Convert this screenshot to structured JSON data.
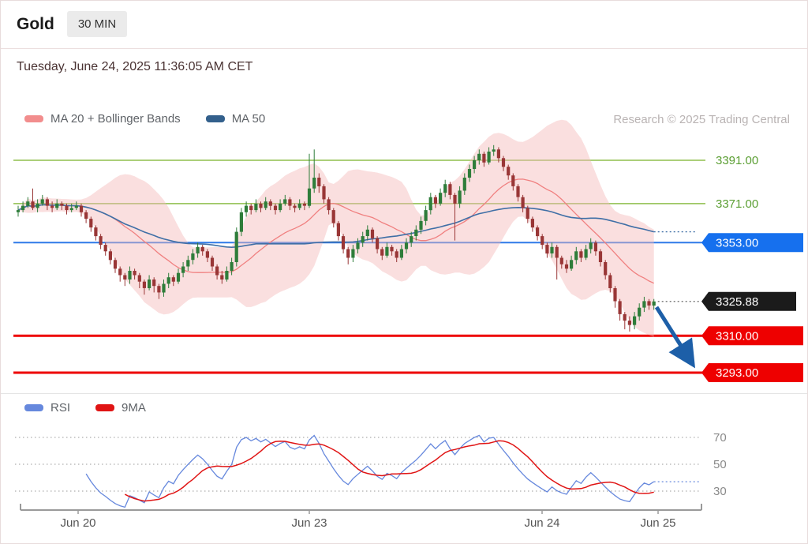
{
  "header": {
    "title": "Gold",
    "timeframe": "30 MIN"
  },
  "datetime": "Tuesday, June 24, 2025 11:36:05 AM CET",
  "watermark": "Research © 2025 Trading Central",
  "legend_main": [
    {
      "label": "MA 20 + Bollinger Bands",
      "color": "#f28d8d"
    },
    {
      "label": "MA 50",
      "color": "#33608c"
    }
  ],
  "legend_rsi": [
    {
      "label": "RSI",
      "color": "#6688dd"
    },
    {
      "label": "9MA",
      "color": "#e01414"
    }
  ],
  "chart_data": {
    "type": "candlestick",
    "title": "Gold 30 MIN",
    "interval": "30 min",
    "x_axis_labels": [
      "Jun 20",
      "Jun 23",
      "Jun 24",
      "Jun 25"
    ],
    "price_range": [
      3286,
      3400
    ],
    "y_levels": [
      {
        "label": "3391.00",
        "price": 3391,
        "type": "resistance",
        "style": "text",
        "color": "#5a9e32",
        "line_color": "#8fbf4d",
        "line_width": 1.5
      },
      {
        "label": "3371.00",
        "price": 3371,
        "type": "resistance",
        "style": "text",
        "color": "#5a9e32",
        "line_color": "#8fbf4d",
        "line_width": 1.5
      },
      {
        "label": "3353.00",
        "price": 3353,
        "type": "pivot",
        "style": "tag",
        "color": "#1670ee",
        "line_color": "#2f7ae8",
        "line_width": 2
      },
      {
        "label": "3310.00",
        "price": 3310,
        "type": "support",
        "style": "tag",
        "color": "#ee0000",
        "line_color": "#ee0000",
        "line_width": 3
      },
      {
        "label": "3293.00",
        "price": 3293,
        "type": "support",
        "style": "tag",
        "color": "#ee0000",
        "line_color": "#ee0000",
        "line_width": 3
      }
    ],
    "last_price": {
      "label": "3325.88",
      "price": 3325.88,
      "color": "#1b1b1b"
    },
    "indicators": {
      "bollinger": {
        "period": 20,
        "stddev": 2,
        "color": "#f08080",
        "fill": "#f3b8b8"
      },
      "ma50": {
        "period": 50,
        "color": "#3f6fa6"
      },
      "rsi": {
        "period": 14,
        "signal_ma": 9,
        "color": "#6688dd",
        "ma_color": "#e01414",
        "gridlines": [
          {
            "label": "70",
            "value": 70
          },
          {
            "label": "50",
            "value": 50
          },
          {
            "label": "30",
            "value": 30
          }
        ]
      }
    },
    "forecast_arrow": {
      "direction": "down",
      "target": 3293,
      "color": "#1d5fa8"
    },
    "candles_format": "[open, high, low, close]",
    "candles": [
      [
        3367,
        3370,
        3365,
        3368
      ],
      [
        3368,
        3372,
        3367,
        3370
      ],
      [
        3370,
        3374,
        3369,
        3372
      ],
      [
        3372,
        3378,
        3368,
        3369
      ],
      [
        3369,
        3373,
        3367,
        3371
      ],
      [
        3371,
        3375,
        3370,
        3373
      ],
      [
        3373,
        3374,
        3368,
        3370
      ],
      [
        3370,
        3372,
        3367,
        3369
      ],
      [
        3369,
        3373,
        3368,
        3371
      ],
      [
        3371,
        3372,
        3368,
        3370
      ],
      [
        3370,
        3371,
        3366,
        3368
      ],
      [
        3368,
        3371,
        3367,
        3369
      ],
      [
        3369,
        3372,
        3368,
        3370
      ],
      [
        3370,
        3371,
        3365,
        3367
      ],
      [
        3367,
        3368,
        3362,
        3364
      ],
      [
        3364,
        3365,
        3358,
        3360
      ],
      [
        3360,
        3361,
        3354,
        3356
      ],
      [
        3356,
        3357,
        3350,
        3352
      ],
      [
        3352,
        3353,
        3347,
        3349
      ],
      [
        3349,
        3350,
        3343,
        3345
      ],
      [
        3345,
        3346,
        3339,
        3341
      ],
      [
        3341,
        3342,
        3335,
        3338
      ],
      [
        3338,
        3339,
        3333,
        3336
      ],
      [
        3336,
        3342,
        3334,
        3340
      ],
      [
        3340,
        3341,
        3336,
        3338
      ],
      [
        3338,
        3339,
        3332,
        3335
      ],
      [
        3335,
        3336,
        3329,
        3332
      ],
      [
        3332,
        3338,
        3331,
        3336
      ],
      [
        3336,
        3337,
        3330,
        3333
      ],
      [
        3333,
        3334,
        3327,
        3330
      ],
      [
        3330,
        3336,
        3328,
        3334
      ],
      [
        3334,
        3339,
        3332,
        3337
      ],
      [
        3337,
        3338,
        3333,
        3335
      ],
      [
        3335,
        3341,
        3334,
        3339
      ],
      [
        3339,
        3344,
        3337,
        3342
      ],
      [
        3342,
        3347,
        3340,
        3345
      ],
      [
        3345,
        3350,
        3343,
        3348
      ],
      [
        3348,
        3353,
        3346,
        3351
      ],
      [
        3351,
        3352,
        3347,
        3349
      ],
      [
        3349,
        3350,
        3344,
        3346
      ],
      [
        3346,
        3347,
        3340,
        3342
      ],
      [
        3342,
        3343,
        3336,
        3338
      ],
      [
        3338,
        3340,
        3334,
        3336
      ],
      [
        3336,
        3342,
        3335,
        3340
      ],
      [
        3340,
        3346,
        3338,
        3344
      ],
      [
        3344,
        3360,
        3342,
        3358
      ],
      [
        3358,
        3369,
        3356,
        3367
      ],
      [
        3367,
        3372,
        3365,
        3370
      ],
      [
        3370,
        3371,
        3366,
        3368
      ],
      [
        3368,
        3373,
        3367,
        3371
      ],
      [
        3371,
        3372,
        3367,
        3369
      ],
      [
        3369,
        3374,
        3368,
        3372
      ],
      [
        3372,
        3373,
        3368,
        3370
      ],
      [
        3370,
        3371,
        3366,
        3368
      ],
      [
        3368,
        3373,
        3367,
        3371
      ],
      [
        3371,
        3375,
        3370,
        3373
      ],
      [
        3373,
        3374,
        3368,
        3370
      ],
      [
        3370,
        3371,
        3367,
        3369
      ],
      [
        3369,
        3373,
        3368,
        3371
      ],
      [
        3371,
        3372,
        3368,
        3370
      ],
      [
        3370,
        3394,
        3369,
        3378
      ],
      [
        3378,
        3396,
        3376,
        3383
      ],
      [
        3383,
        3385,
        3376,
        3379
      ],
      [
        3379,
        3380,
        3371,
        3373
      ],
      [
        3373,
        3374,
        3366,
        3368
      ],
      [
        3368,
        3369,
        3360,
        3362
      ],
      [
        3362,
        3363,
        3354,
        3356
      ],
      [
        3356,
        3357,
        3348,
        3350
      ],
      [
        3350,
        3351,
        3343,
        3346
      ],
      [
        3346,
        3352,
        3344,
        3350
      ],
      [
        3350,
        3355,
        3348,
        3353
      ],
      [
        3353,
        3358,
        3351,
        3356
      ],
      [
        3356,
        3361,
        3354,
        3359
      ],
      [
        3359,
        3360,
        3353,
        3355
      ],
      [
        3355,
        3356,
        3348,
        3350
      ],
      [
        3350,
        3351,
        3345,
        3347
      ],
      [
        3347,
        3353,
        3346,
        3351
      ],
      [
        3351,
        3352,
        3347,
        3349
      ],
      [
        3349,
        3350,
        3344,
        3346
      ],
      [
        3346,
        3352,
        3345,
        3350
      ],
      [
        3350,
        3355,
        3348,
        3353
      ],
      [
        3353,
        3358,
        3351,
        3356
      ],
      [
        3356,
        3361,
        3354,
        3359
      ],
      [
        3359,
        3365,
        3357,
        3363
      ],
      [
        3363,
        3370,
        3361,
        3368
      ],
      [
        3368,
        3376,
        3366,
        3374
      ],
      [
        3374,
        3375,
        3369,
        3371
      ],
      [
        3371,
        3378,
        3370,
        3376
      ],
      [
        3376,
        3382,
        3374,
        3380
      ],
      [
        3380,
        3381,
        3373,
        3375
      ],
      [
        3375,
        3376,
        3354,
        3371
      ],
      [
        3371,
        3379,
        3369,
        3377
      ],
      [
        3377,
        3385,
        3375,
        3383
      ],
      [
        3383,
        3389,
        3381,
        3387
      ],
      [
        3387,
        3393,
        3385,
        3391
      ],
      [
        3391,
        3396,
        3389,
        3394
      ],
      [
        3394,
        3395,
        3388,
        3390
      ],
      [
        3390,
        3397,
        3389,
        3395
      ],
      [
        3395,
        3398,
        3393,
        3396
      ],
      [
        3396,
        3397,
        3390,
        3392
      ],
      [
        3392,
        3393,
        3386,
        3388
      ],
      [
        3388,
        3389,
        3382,
        3384
      ],
      [
        3384,
        3385,
        3377,
        3379
      ],
      [
        3379,
        3380,
        3372,
        3374
      ],
      [
        3374,
        3375,
        3367,
        3369
      ],
      [
        3369,
        3370,
        3362,
        3364
      ],
      [
        3364,
        3365,
        3358,
        3360
      ],
      [
        3360,
        3361,
        3354,
        3356
      ],
      [
        3356,
        3357,
        3350,
        3352
      ],
      [
        3352,
        3353,
        3346,
        3348
      ],
      [
        3348,
        3353,
        3346,
        3351
      ],
      [
        3351,
        3352,
        3336,
        3346
      ],
      [
        3346,
        3347,
        3341,
        3343
      ],
      [
        3343,
        3345,
        3339,
        3341
      ],
      [
        3341,
        3347,
        3340,
        3345
      ],
      [
        3345,
        3351,
        3343,
        3349
      ],
      [
        3349,
        3350,
        3344,
        3346
      ],
      [
        3346,
        3352,
        3345,
        3350
      ],
      [
        3350,
        3355,
        3348,
        3353
      ],
      [
        3353,
        3354,
        3347,
        3349
      ],
      [
        3349,
        3350,
        3342,
        3344
      ],
      [
        3344,
        3345,
        3336,
        3338
      ],
      [
        3338,
        3339,
        3330,
        3332
      ],
      [
        3332,
        3333,
        3323,
        3326
      ],
      [
        3326,
        3327,
        3317,
        3320
      ],
      [
        3320,
        3321,
        3313,
        3317
      ],
      [
        3317,
        3319,
        3312,
        3315
      ],
      [
        3315,
        3321,
        3313,
        3319
      ],
      [
        3319,
        3325,
        3317,
        3323
      ],
      [
        3323,
        3328,
        3321,
        3326
      ],
      [
        3326,
        3327,
        3322,
        3324
      ],
      [
        3324,
        3327,
        3322,
        3325.88
      ]
    ]
  }
}
